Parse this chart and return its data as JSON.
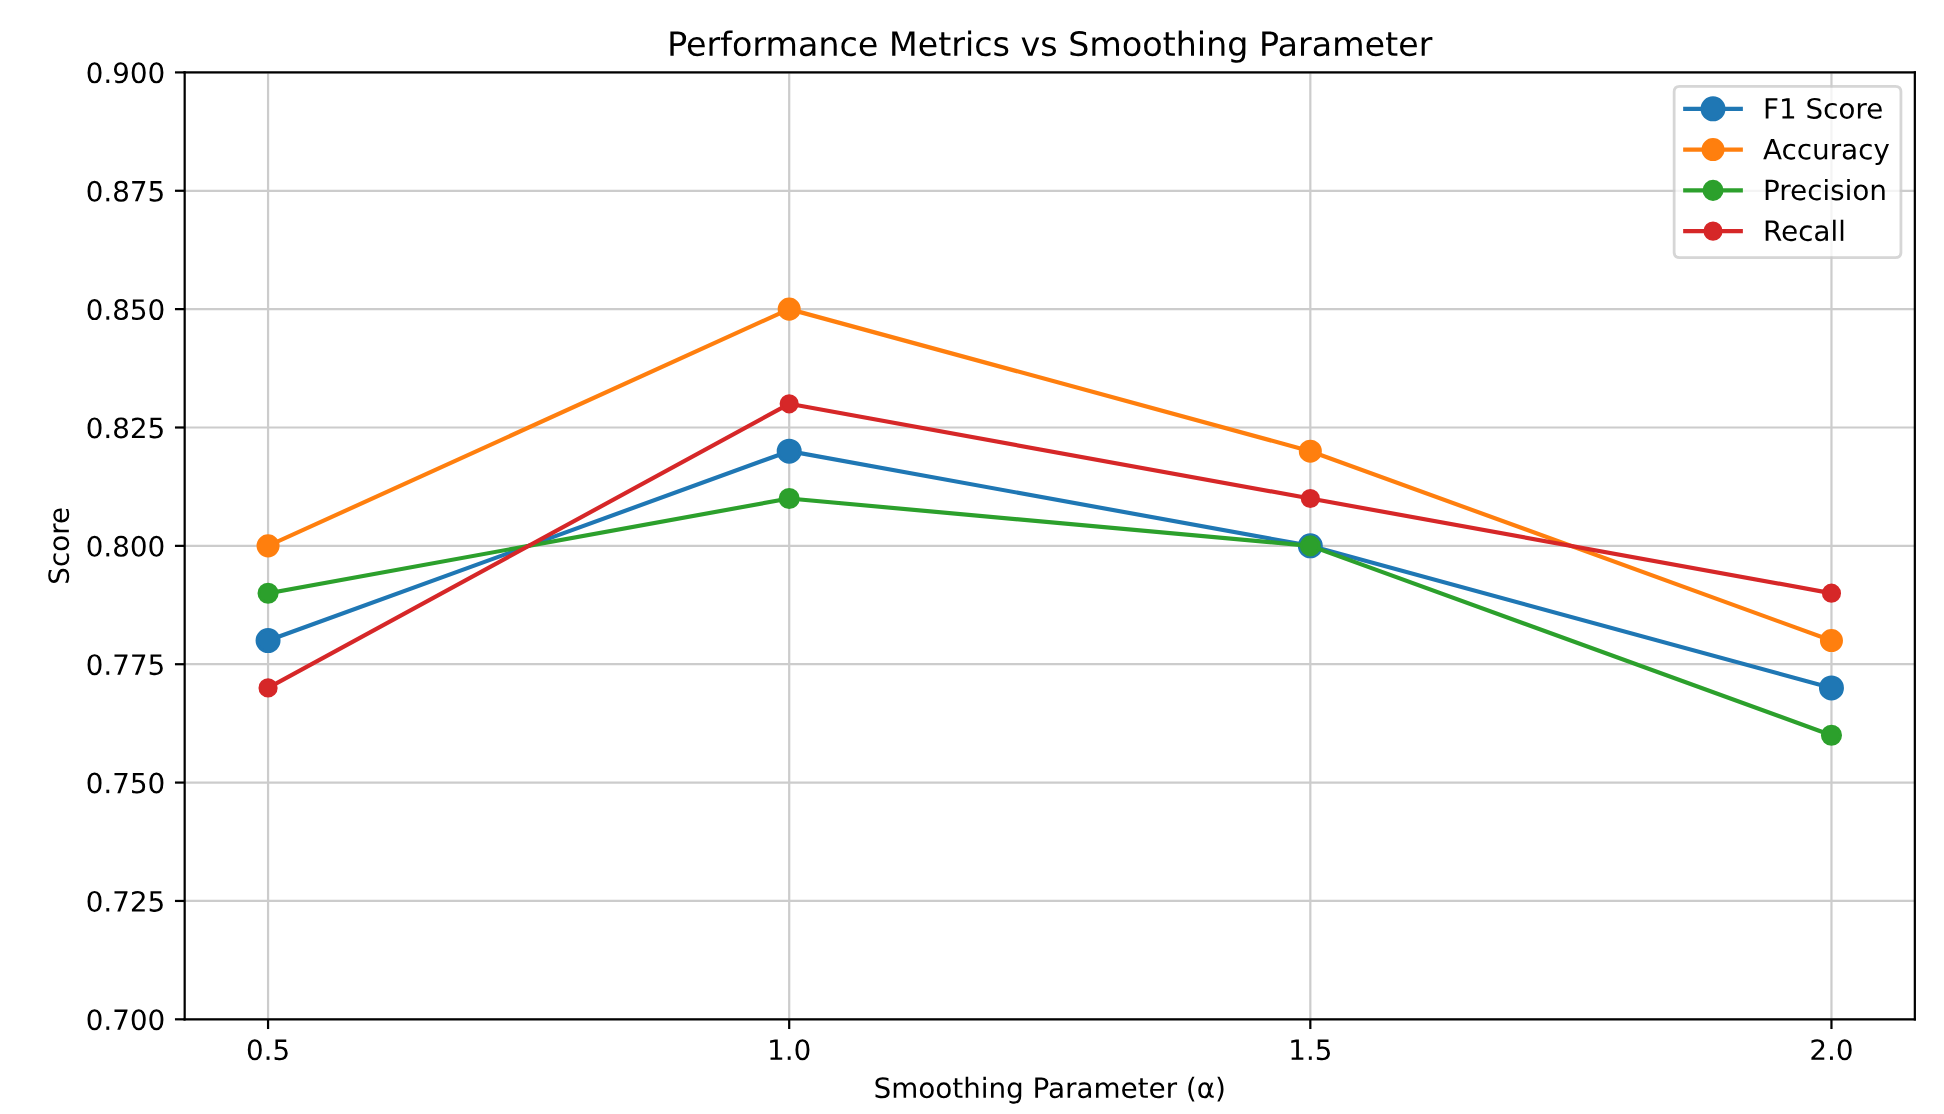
{
  "chart_data": {
    "type": "line",
    "title": "Performance Metrics vs Smoothing Parameter",
    "xlabel": "Smoothing Parameter (α)",
    "ylabel": "Score",
    "x": [
      0.5,
      1.0,
      1.5,
      2.0
    ],
    "series": [
      {
        "name": "F1 Score",
        "color": "#1f77b4",
        "values": [
          0.78,
          0.82,
          0.8,
          0.77
        ]
      },
      {
        "name": "Accuracy",
        "color": "#ff7f0e",
        "values": [
          0.8,
          0.85,
          0.82,
          0.78
        ]
      },
      {
        "name": "Precision",
        "color": "#2ca02c",
        "values": [
          0.79,
          0.81,
          0.8,
          0.76
        ]
      },
      {
        "name": "Recall",
        "color": "#d62728",
        "values": [
          0.77,
          0.83,
          0.81,
          0.79
        ]
      }
    ],
    "xlim": [
      0.42,
      2.08
    ],
    "xticks": [
      {
        "value": 0.5,
        "label": "0.5"
      },
      {
        "value": 1.0,
        "label": "1.0"
      },
      {
        "value": 1.5,
        "label": "1.5"
      },
      {
        "value": 2.0,
        "label": "2.0"
      }
    ],
    "ylim": [
      0.7,
      0.9
    ],
    "yticks": [
      {
        "value": 0.7,
        "label": "0.700"
      },
      {
        "value": 0.725,
        "label": "0.725"
      },
      {
        "value": 0.75,
        "label": "0.750"
      },
      {
        "value": 0.775,
        "label": "0.775"
      },
      {
        "value": 0.8,
        "label": "0.800"
      },
      {
        "value": 0.825,
        "label": "0.825"
      },
      {
        "value": 0.85,
        "label": "0.850"
      },
      {
        "value": 0.875,
        "label": "0.875"
      },
      {
        "value": 0.9,
        "label": "0.900"
      }
    ],
    "grid": true,
    "legend": "top right",
    "marker": "circle",
    "line_style": "solid"
  }
}
